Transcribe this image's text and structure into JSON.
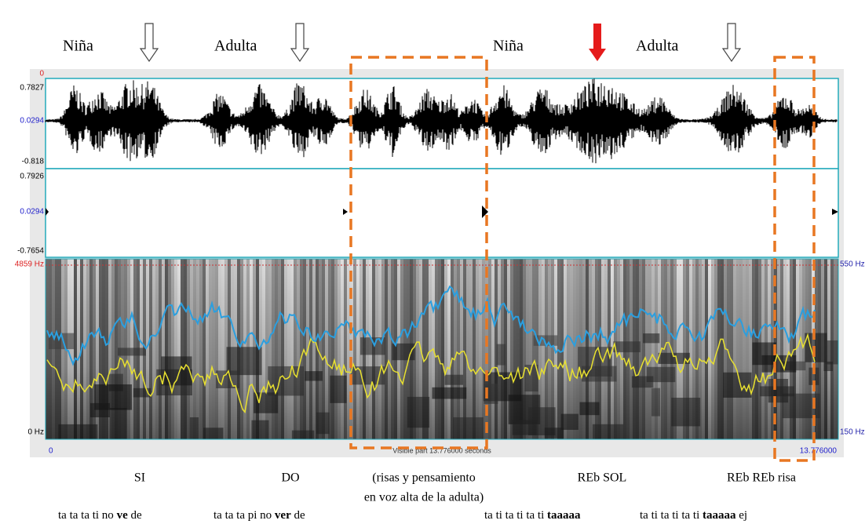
{
  "speakers": [
    "Niña",
    "Adulta",
    "Niña",
    "Adulta"
  ],
  "praat": {
    "cursor_start": "0",
    "wave1": {
      "max": "0.7827",
      "mid": "0.0294",
      "min": "-0.818"
    },
    "wave2": {
      "max": "0.7926",
      "mid": "0.0294",
      "min": "-0.7654"
    },
    "spectrogram": {
      "top": "4859 Hz",
      "bottom": "0 Hz",
      "pitch_top": "550 Hz",
      "pitch_bottom": "150 Hz"
    },
    "time_start": "0",
    "visible": "Visible part 13.776000 seconds",
    "time_end": "13.776000"
  },
  "notes": [
    [
      "SI"
    ],
    [
      "DO"
    ],
    [
      "(risas y pensamiento",
      "en voz alta de la adulta)"
    ],
    [
      "REb SOL"
    ],
    [
      "REb REb risa"
    ]
  ],
  "lyrics": [
    {
      "parts": [
        {
          "text": "ta ta ta ti no "
        },
        {
          "text": "ve",
          "bold": true
        },
        {
          "text": " de"
        }
      ]
    },
    {
      "parts": [
        {
          "text": "ta ta ta pi no "
        },
        {
          "text": "ver",
          "bold": true
        },
        {
          "text": " de"
        }
      ]
    },
    {
      "parts": [
        {
          "text": "ta ti ta ti ta ti "
        },
        {
          "text": "taaaaa",
          "bold": true
        }
      ]
    },
    {
      "parts": [
        {
          "text": "ta ti ta ti ta ti "
        },
        {
          "text": "taaaaa",
          "bold": true
        },
        {
          "text": " ej"
        }
      ]
    }
  ]
}
